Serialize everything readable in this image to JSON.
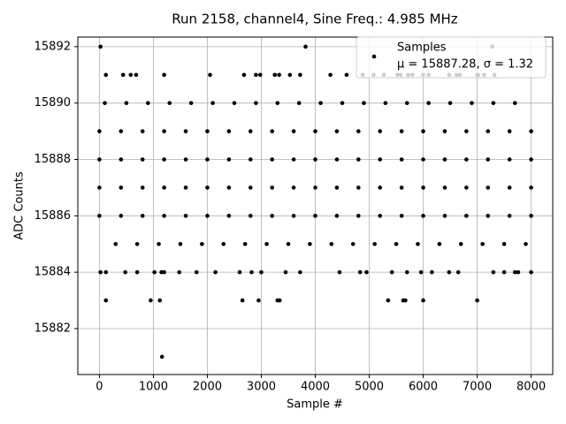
{
  "chart_data": {
    "type": "scatter",
    "title": "Run 2158, channel4, Sine Freq.: 4.985 MHz",
    "x_label": "Sample #",
    "y_label": "ADC Counts",
    "xlim": [
      -400,
      8400
    ],
    "ylim": [
      15880.37,
      15892.34
    ],
    "xticks": [
      0,
      1000,
      2000,
      3000,
      4000,
      5000,
      6000,
      7000,
      8000
    ],
    "yticks": [
      15882,
      15884,
      15886,
      15888,
      15890,
      15892
    ],
    "grid": true,
    "legend": "upper right",
    "legend_note": "μ = 15887.28, σ = 1.32",
    "series": [
      {
        "name": "Samples",
        "color": "#000000",
        "x": [
          0,
          400,
          800,
          1200,
          1600,
          2000,
          2400,
          2800,
          3200,
          3600,
          4000,
          4400,
          4800,
          5200,
          5600,
          6000,
          6400,
          6800,
          7200,
          7600,
          8000,
          0,
          400,
          800,
          1200,
          1600,
          2000,
          2400,
          2800,
          3200,
          3600,
          4000,
          4400,
          4800,
          5200,
          5600,
          6000,
          6400,
          6800,
          7200,
          7600,
          8000,
          0,
          400,
          800,
          1200,
          1600,
          2000,
          2400,
          2800,
          3200,
          3600,
          4000,
          4400,
          4800,
          5200,
          5600,
          6000,
          6400,
          6800,
          7200,
          7600,
          8000,
          0,
          400,
          800,
          1200,
          1600,
          2000,
          2400,
          2800,
          3200,
          3600,
          4000,
          4400,
          4800,
          5200,
          5600,
          6000,
          6400,
          6800,
          7200,
          7600,
          8000,
          100,
          500,
          900,
          1300,
          1700,
          2100,
          2500,
          2900,
          3300,
          3700,
          4100,
          4500,
          4900,
          5300,
          5700,
          6100,
          6500,
          6900,
          7300,
          7700,
          300,
          700,
          1100,
          1500,
          1900,
          2300,
          2700,
          3100,
          3500,
          3900,
          4300,
          4700,
          5100,
          5500,
          5900,
          6300,
          6700,
          7100,
          7500,
          7900,
          20,
          3820,
          7280,
          120,
          440,
          580,
          680,
          1200,
          2050,
          2680,
          2900,
          2980,
          3250,
          3330,
          3530,
          3720,
          4280,
          4580,
          4880,
          5080,
          5270,
          5520,
          5580,
          5720,
          5800,
          6000,
          6100,
          6480,
          6620,
          6680,
          7000,
          7020,
          7130,
          7320,
          20,
          120,
          480,
          700,
          1020,
          1150,
          1200,
          1480,
          1800,
          2150,
          2600,
          2820,
          3000,
          3450,
          3720,
          4450,
          4830,
          4950,
          5420,
          5700,
          5960,
          6160,
          6480,
          6650,
          7300,
          7500,
          7700,
          7760,
          8000,
          120,
          950,
          1120,
          2650,
          2950,
          3300,
          3340,
          5350,
          5630,
          5670,
          6000,
          7000,
          1160
        ],
        "values": [
          15889,
          15889,
          15889,
          15889,
          15889,
          15889,
          15889,
          15889,
          15889,
          15889,
          15889,
          15889,
          15889,
          15889,
          15889,
          15889,
          15889,
          15889,
          15889,
          15889,
          15889,
          15888,
          15888,
          15888,
          15888,
          15888,
          15888,
          15888,
          15888,
          15888,
          15888,
          15888,
          15888,
          15888,
          15888,
          15888,
          15888,
          15888,
          15888,
          15888,
          15888,
          15888,
          15887,
          15887,
          15887,
          15887,
          15887,
          15887,
          15887,
          15887,
          15887,
          15887,
          15887,
          15887,
          15887,
          15887,
          15887,
          15887,
          15887,
          15887,
          15887,
          15887,
          15887,
          15886,
          15886,
          15886,
          15886,
          15886,
          15886,
          15886,
          15886,
          15886,
          15886,
          15886,
          15886,
          15886,
          15886,
          15886,
          15886,
          15886,
          15886,
          15886,
          15886,
          15886,
          15890,
          15890,
          15890,
          15890,
          15890,
          15890,
          15890,
          15890,
          15890,
          15890,
          15890,
          15890,
          15890,
          15890,
          15890,
          15890,
          15890,
          15890,
          15890,
          15890,
          15885,
          15885,
          15885,
          15885,
          15885,
          15885,
          15885,
          15885,
          15885,
          15885,
          15885,
          15885,
          15885,
          15885,
          15885,
          15885,
          15885,
          15885,
          15885,
          15885,
          15892,
          15892,
          15892,
          15891,
          15891,
          15891,
          15891,
          15891,
          15891,
          15891,
          15891,
          15891,
          15891,
          15891,
          15891,
          15891,
          15891,
          15891,
          15891,
          15891,
          15891,
          15891,
          15891,
          15891,
          15891,
          15891,
          15891,
          15891,
          15891,
          15891,
          15891,
          15891,
          15891,
          15891,
          15884,
          15884,
          15884,
          15884,
          15884,
          15884,
          15884,
          15884,
          15884,
          15884,
          15884,
          15884,
          15884,
          15884,
          15884,
          15884,
          15884,
          15884,
          15884,
          15884,
          15884,
          15884,
          15884,
          15884,
          15884,
          15884,
          15884,
          15884,
          15884,
          15883,
          15883,
          15883,
          15883,
          15883,
          15883,
          15883,
          15883,
          15883,
          15883,
          15883,
          15883,
          15881
        ]
      }
    ]
  }
}
